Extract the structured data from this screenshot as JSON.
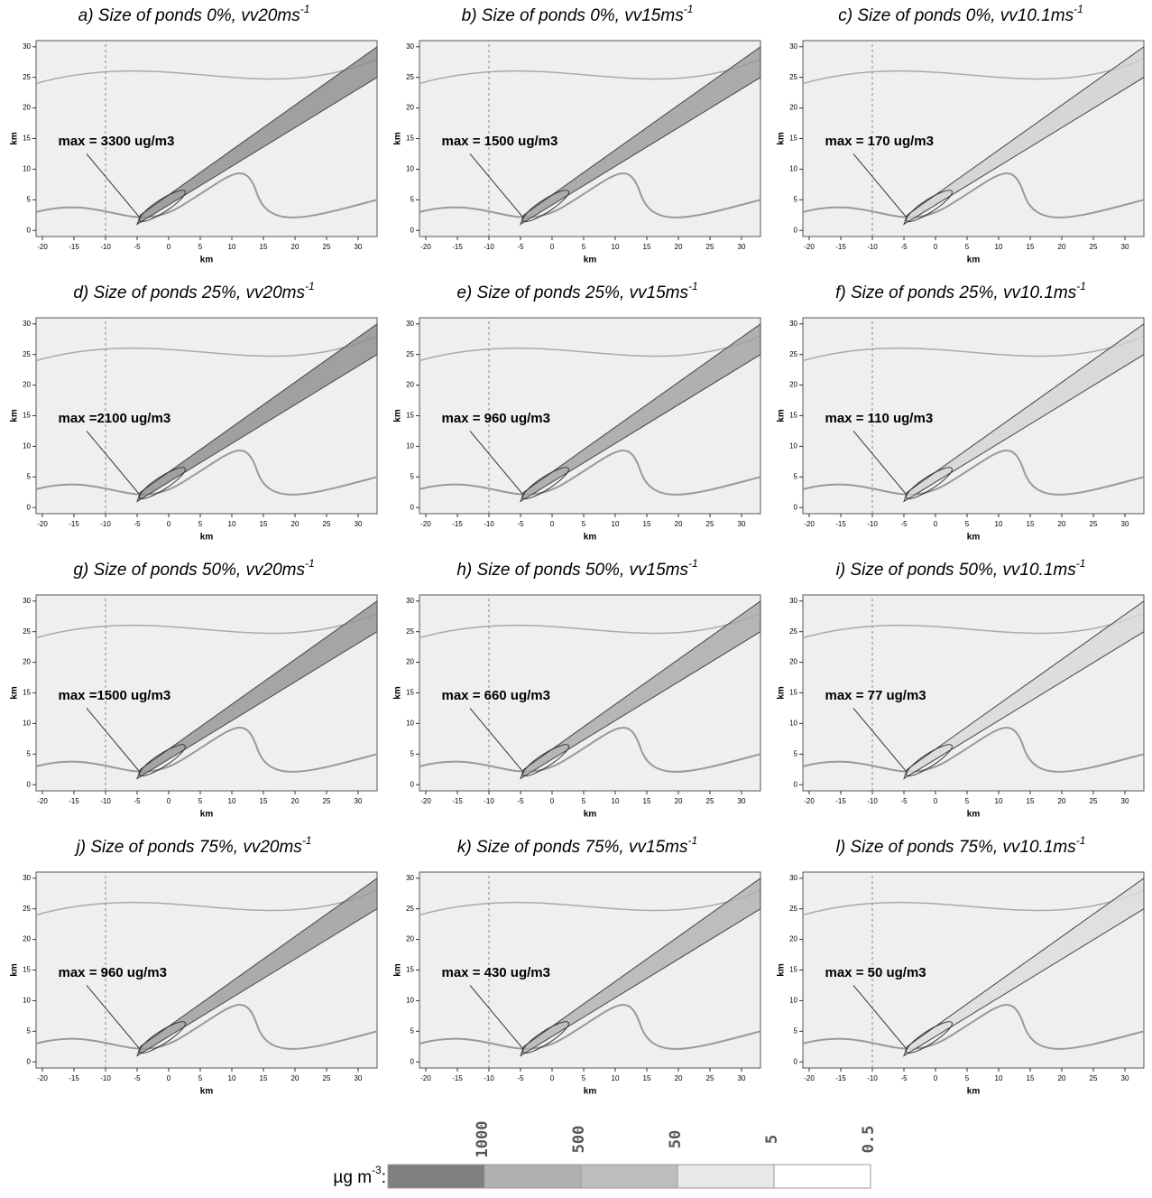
{
  "axes": {
    "xlabel": "km",
    "ylabel": "km",
    "xlim": [
      -21,
      33
    ],
    "ylim": [
      -1,
      31
    ],
    "xticks": [
      -20,
      -15,
      -10,
      -5,
      0,
      5,
      10,
      15,
      20,
      25,
      30
    ],
    "yticks": [
      0,
      5,
      10,
      15,
      20,
      25,
      30
    ]
  },
  "panels": [
    {
      "title": "a) Size of ponds 0%, vv20ms",
      "sup": "-1",
      "max": "max = 3300 ug/m3",
      "plume_color": "#8c8c8c"
    },
    {
      "title": "b) Size of ponds 0%, vv15ms",
      "sup": "-1",
      "max": "max = 1500 ug/m3",
      "plume_color": "#9a9a9a"
    },
    {
      "title": "c) Size of ponds 0%, vv10.1ms",
      "sup": "-1",
      "max": "max = 170 ug/m3",
      "plume_color": "#cfcfcf"
    },
    {
      "title": "d) Size of ponds 25%, vv20ms",
      "sup": "-1",
      "max": "max =2100 ug/m3",
      "plume_color": "#8c8c8c"
    },
    {
      "title": "e) Size of ponds 25%, vv15ms",
      "sup": "-1",
      "max": "max = 960 ug/m3",
      "plume_color": "#a0a0a0"
    },
    {
      "title": "f) Size of ponds 25%, vv10.1ms",
      "sup": "-1",
      "max": "max = 110 ug/m3",
      "plume_color": "#d3d3d3"
    },
    {
      "title": "g) Size of ponds 50%, vv20ms",
      "sup": "-1",
      "max": "max =1500 ug/m3",
      "plume_color": "#929292"
    },
    {
      "title": "h) Size of ponds 50%, vv15ms",
      "sup": "-1",
      "max": "max = 660 ug/m3",
      "plume_color": "#a8a8a8"
    },
    {
      "title": "i) Size of ponds 50%, vv10.1ms",
      "sup": "-1",
      "max": "max = 77 ug/m3",
      "plume_color": "#d8d8d8"
    },
    {
      "title": "j) Size of ponds 75%, vv20ms",
      "sup": "-1",
      "max": "max = 960 ug/m3",
      "plume_color": "#9a9a9a"
    },
    {
      "title": "k) Size of ponds 75%, vv15ms",
      "sup": "-1",
      "max": "max = 430 ug/m3",
      "plume_color": "#b0b0b0"
    },
    {
      "title": "l) Size of ponds 75%, vv10.1ms",
      "sup": "-1",
      "max": "max = 50 ug/m3",
      "plume_color": "#dcdcdc"
    }
  ],
  "legend": {
    "unit": "µg m",
    "sup": "-3",
    "colon": ":",
    "levels": [
      "1000",
      "500",
      "50",
      "5",
      "0.5"
    ],
    "colors": [
      "#7f7f7f",
      "#b0b0b0",
      "#bdbdbd",
      "#e8e8e8",
      "#ffffff"
    ]
  }
}
